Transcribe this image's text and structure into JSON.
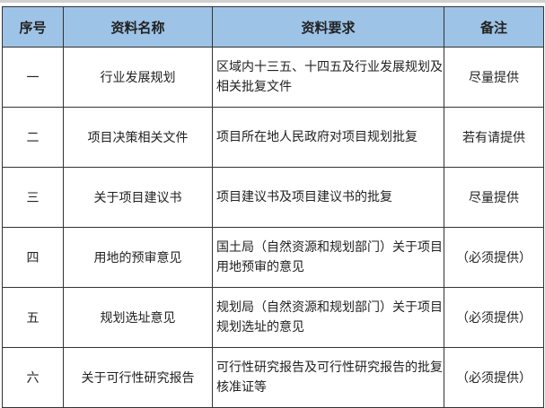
{
  "table": {
    "headers": [
      "序号",
      "资料名称",
      "资料要求",
      "备注"
    ],
    "rows": [
      {
        "no": "一",
        "name": "行业发展规划",
        "requirement": "区域内十三五、十四五及行业发展规划及相关批复文件",
        "note": "尽量提供"
      },
      {
        "no": "二",
        "name": "项目决策相关文件",
        "requirement": "项目所在地人民政府对项目规划批复",
        "note": "若有请提供"
      },
      {
        "no": "三",
        "name": "关于项目建议书",
        "requirement": "项目建议书及项目建议书的批复",
        "note": "尽量提供"
      },
      {
        "no": "四",
        "name": "用地的预审意见",
        "requirement": "国土局（自然资源和规划部门）关于项目用地预审的意见",
        "note": "（必须提供）"
      },
      {
        "no": "五",
        "name": "规划选址意见",
        "requirement": "规划局（自然资源和规划部门）关于项目规划选址的意见",
        "note": "（必须提供）"
      },
      {
        "no": "六",
        "name": "关于可行性研究报告",
        "requirement": "可行性研究报告及可行性研究报告的批复核准证等",
        "note": "（必须提供）"
      }
    ]
  },
  "colors": {
    "header_bg": "#9dc3e6"
  }
}
